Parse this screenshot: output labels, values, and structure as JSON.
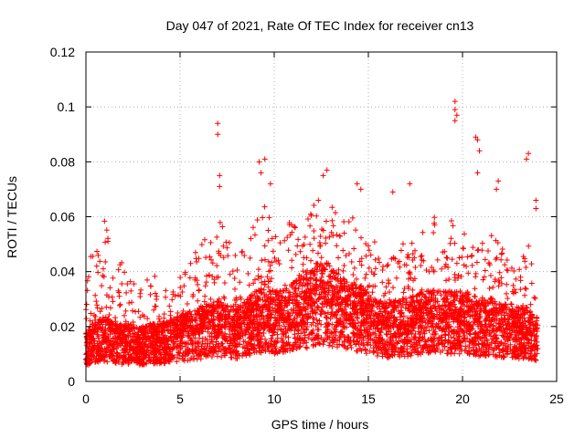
{
  "chart_data": {
    "type": "scatter",
    "title": "Day 047 of 2021, Rate Of TEC Index for receiver cn13",
    "xlabel": "GPS time / hours",
    "ylabel": "ROTI / TECUs",
    "xlim": [
      0,
      25
    ],
    "ylim": [
      0,
      0.12
    ],
    "xticks": [
      "0",
      "5",
      "10",
      "15",
      "20",
      "25"
    ],
    "yticks": [
      "0",
      "0.02",
      "0.04",
      "0.06",
      "0.08",
      "0.1",
      "0.12"
    ],
    "grid": true,
    "marker": "plus",
    "color": "#ff0000",
    "series": [
      {
        "name": "ROTI",
        "profile": [
          [
            0.0,
            0.012,
            0.045
          ],
          [
            0.5,
            0.015,
            0.05
          ],
          [
            1.0,
            0.016,
            0.06
          ],
          [
            1.5,
            0.014,
            0.04
          ],
          [
            2.0,
            0.014,
            0.045
          ],
          [
            2.5,
            0.014,
            0.04
          ],
          [
            3.0,
            0.013,
            0.035
          ],
          [
            3.5,
            0.014,
            0.04
          ],
          [
            4.0,
            0.014,
            0.035
          ],
          [
            4.5,
            0.015,
            0.035
          ],
          [
            5.0,
            0.016,
            0.04
          ],
          [
            5.5,
            0.017,
            0.045
          ],
          [
            6.0,
            0.018,
            0.05
          ],
          [
            6.5,
            0.019,
            0.055
          ],
          [
            7.0,
            0.02,
            0.06
          ],
          [
            7.5,
            0.019,
            0.055
          ],
          [
            8.0,
            0.018,
            0.045
          ],
          [
            8.5,
            0.02,
            0.05
          ],
          [
            9.0,
            0.022,
            0.06
          ],
          [
            9.5,
            0.024,
            0.065
          ],
          [
            10.0,
            0.022,
            0.055
          ],
          [
            10.5,
            0.022,
            0.055
          ],
          [
            11.0,
            0.024,
            0.06
          ],
          [
            11.5,
            0.026,
            0.065
          ],
          [
            12.0,
            0.028,
            0.065
          ],
          [
            12.5,
            0.03,
            0.07
          ],
          [
            13.0,
            0.028,
            0.065
          ],
          [
            13.5,
            0.026,
            0.06
          ],
          [
            14.0,
            0.024,
            0.06
          ],
          [
            14.5,
            0.024,
            0.065
          ],
          [
            15.0,
            0.022,
            0.055
          ],
          [
            15.5,
            0.02,
            0.05
          ],
          [
            16.0,
            0.019,
            0.045
          ],
          [
            16.5,
            0.02,
            0.05
          ],
          [
            17.0,
            0.02,
            0.055
          ],
          [
            17.5,
            0.021,
            0.055
          ],
          [
            18.0,
            0.022,
            0.055
          ],
          [
            18.5,
            0.022,
            0.06
          ],
          [
            19.0,
            0.022,
            0.06
          ],
          [
            19.5,
            0.022,
            0.06
          ],
          [
            20.0,
            0.022,
            0.055
          ],
          [
            20.5,
            0.021,
            0.055
          ],
          [
            21.0,
            0.02,
            0.05
          ],
          [
            21.5,
            0.02,
            0.055
          ],
          [
            22.0,
            0.019,
            0.05
          ],
          [
            22.5,
            0.019,
            0.05
          ],
          [
            23.0,
            0.018,
            0.045
          ],
          [
            23.5,
            0.018,
            0.05
          ],
          [
            24.0,
            0.016,
            0.045
          ]
        ],
        "outliers": [
          [
            7.0,
            0.094
          ],
          [
            7.0,
            0.09
          ],
          [
            7.1,
            0.075
          ],
          [
            7.1,
            0.071
          ],
          [
            9.2,
            0.08
          ],
          [
            9.5,
            0.081
          ],
          [
            9.3,
            0.076
          ],
          [
            9.8,
            0.072
          ],
          [
            12.8,
            0.077
          ],
          [
            12.6,
            0.075
          ],
          [
            14.4,
            0.072
          ],
          [
            14.6,
            0.07
          ],
          [
            16.3,
            0.069
          ],
          [
            17.2,
            0.072
          ],
          [
            19.6,
            0.102
          ],
          [
            19.6,
            0.099
          ],
          [
            19.7,
            0.097
          ],
          [
            19.6,
            0.095
          ],
          [
            20.7,
            0.089
          ],
          [
            20.8,
            0.088
          ],
          [
            20.9,
            0.084
          ],
          [
            20.8,
            0.076
          ],
          [
            21.9,
            0.073
          ],
          [
            21.8,
            0.07
          ],
          [
            23.5,
            0.083
          ],
          [
            23.4,
            0.081
          ],
          [
            23.9,
            0.066
          ],
          [
            23.9,
            0.063
          ]
        ]
      }
    ]
  }
}
